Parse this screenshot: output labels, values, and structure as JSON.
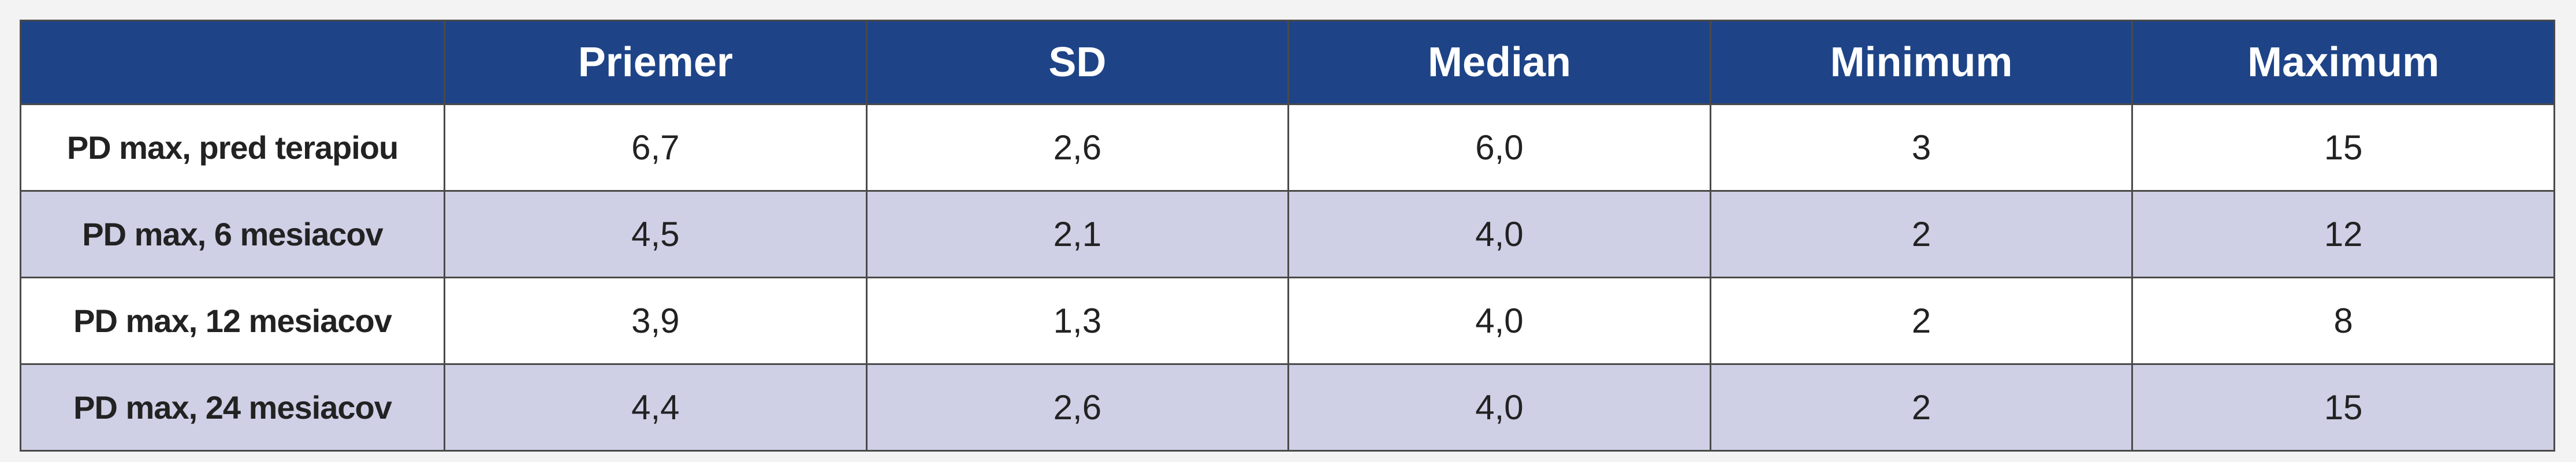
{
  "table": {
    "columns": [
      "Priemer",
      "SD",
      "Median",
      "Minimum",
      "Maximum"
    ],
    "rows": [
      [
        "PD max, pred terapiou",
        "6,7",
        "2,6",
        "6,0",
        "3",
        "15"
      ],
      [
        "PD max, 6 mesiacov",
        "4,5",
        "2,1",
        "4,0",
        "2",
        "12"
      ],
      [
        "PD max, 12 mesiacov",
        "3,9",
        "1,3",
        "4,0",
        "2",
        "8"
      ],
      [
        "PD max, 24 mesiacov",
        "4,4",
        "2,6",
        "4,0",
        "2",
        "15"
      ]
    ]
  }
}
